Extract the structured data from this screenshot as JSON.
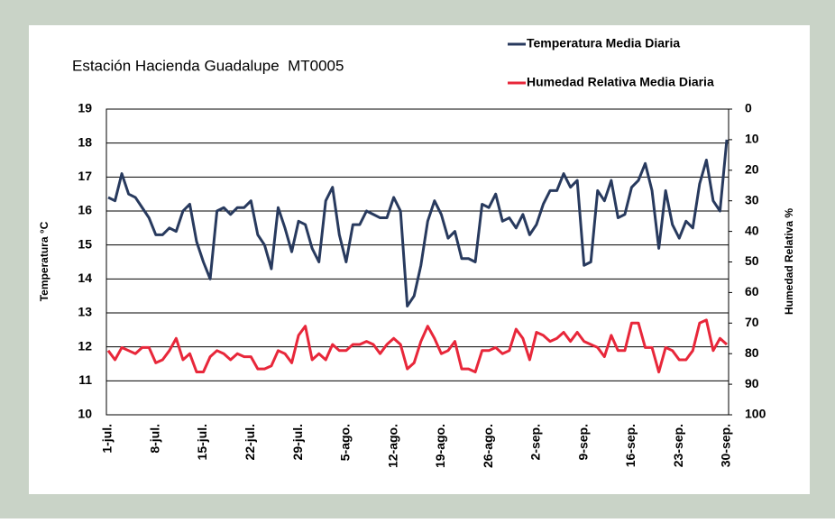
{
  "chart_data": {
    "type": "line",
    "title": "Estación Hacienda Guadalupe  MT0005",
    "y_label": "Temperatura °C",
    "y2_label": "Humedad Relativa %",
    "categories": [
      "1-jul.",
      null,
      null,
      null,
      null,
      null,
      null,
      "8-jul.",
      null,
      null,
      null,
      null,
      null,
      null,
      "15-jul.",
      null,
      null,
      null,
      null,
      null,
      null,
      "22-jul.",
      null,
      null,
      null,
      null,
      null,
      null,
      "29-jul.",
      null,
      null,
      null,
      null,
      null,
      null,
      "5-ago.",
      null,
      null,
      null,
      null,
      null,
      null,
      "12-ago.",
      null,
      null,
      null,
      null,
      null,
      null,
      "19-ago.",
      null,
      null,
      null,
      null,
      null,
      null,
      "26-ago.",
      null,
      null,
      null,
      null,
      null,
      null,
      "2-sep.",
      null,
      null,
      null,
      null,
      null,
      null,
      "9-sep.",
      null,
      null,
      null,
      null,
      null,
      null,
      "16-sep.",
      null,
      null,
      null,
      null,
      null,
      null,
      "23-sep.",
      null,
      null,
      null,
      null,
      null,
      null,
      "30-sep."
    ],
    "series": [
      {
        "name": "Temperatura Media Diaria",
        "color": "#283a5e",
        "axis": "y",
        "values": [
          16.4,
          16.3,
          17.1,
          16.5,
          16.4,
          16.1,
          15.8,
          15.3,
          15.3,
          15.5,
          15.4,
          16.0,
          16.2,
          15.1,
          14.5,
          14.0,
          16.0,
          16.1,
          15.9,
          16.1,
          16.1,
          16.3,
          15.3,
          15.0,
          14.3,
          16.1,
          15.5,
          14.8,
          15.7,
          15.6,
          14.9,
          14.5,
          16.3,
          16.7,
          15.3,
          14.5,
          15.6,
          15.6,
          16.0,
          15.9,
          15.8,
          15.8,
          16.4,
          16.0,
          13.2,
          13.5,
          14.4,
          15.7,
          16.3,
          15.9,
          15.2,
          15.4,
          14.6,
          14.6,
          14.5,
          16.2,
          16.1,
          16.5,
          15.7,
          15.8,
          15.5,
          15.9,
          15.3,
          15.6,
          16.2,
          16.6,
          16.6,
          17.1,
          16.7,
          16.9,
          14.4,
          14.5,
          16.6,
          16.3,
          16.9,
          15.8,
          15.9,
          16.7,
          16.9,
          17.4,
          16.6,
          14.9,
          16.6,
          15.6,
          15.2,
          15.7,
          15.5,
          16.8,
          17.5,
          16.3,
          16.0,
          18.1
        ]
      },
      {
        "name": "Humedad Relativa Media Diaria",
        "color": "#e8273a",
        "axis": "y2",
        "values": [
          79,
          82,
          78,
          79,
          80,
          78,
          78,
          83,
          82,
          79,
          75,
          82,
          80,
          86,
          86,
          81,
          79,
          80,
          82,
          80,
          81,
          81,
          85,
          85,
          84,
          79,
          80,
          83,
          74,
          71,
          82,
          80,
          82,
          77,
          79,
          79,
          77,
          77,
          76,
          77,
          80,
          77,
          75,
          77,
          85,
          83,
          76,
          71,
          75,
          80,
          79,
          76,
          85,
          85,
          86,
          79,
          79,
          78,
          80,
          79,
          72,
          75,
          82,
          73,
          74,
          76,
          75,
          73,
          76,
          73,
          76,
          77,
          78,
          81,
          74,
          79,
          79,
          70,
          70,
          78,
          78,
          86,
          78,
          79,
          82,
          82,
          79,
          70,
          69,
          79,
          75,
          77
        ]
      }
    ],
    "ylim": [
      10,
      19
    ],
    "yticks": [
      10,
      11,
      12,
      13,
      14,
      15,
      16,
      17,
      18,
      19
    ],
    "y2lim": [
      100,
      0
    ],
    "y2ticks": [
      0,
      10,
      20,
      30,
      40,
      50,
      60,
      70,
      80,
      90,
      100
    ],
    "grid": true,
    "legend": "top-right"
  }
}
